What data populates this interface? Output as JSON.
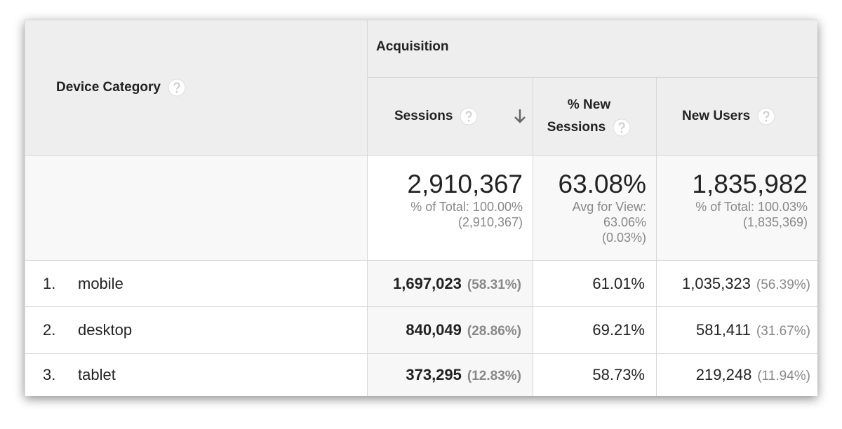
{
  "header": {
    "device_category": "Device Category",
    "group": "Acquisition",
    "columns": [
      "Sessions",
      "% New Sessions",
      "New Users"
    ]
  },
  "totals": [
    {
      "value": "2,910,367",
      "note": [
        "% of Total: 100.00%",
        "(2,910,367)"
      ]
    },
    {
      "value": "63.08%",
      "note": [
        "Avg for View:",
        "63.06%",
        "(0.03%)"
      ]
    },
    {
      "value": "1,835,982",
      "note": [
        "% of Total: 100.03%",
        "(1,835,369)"
      ]
    }
  ],
  "rows": [
    {
      "rank": "1.",
      "device": "mobile",
      "sessions": "1,697,023",
      "sessions_share": "(58.31%)",
      "new_sessions": "61.01%",
      "new_users": "1,035,323",
      "new_users_share": "(56.39%)"
    },
    {
      "rank": "2.",
      "device": "desktop",
      "sessions": "840,049",
      "sessions_share": "(28.86%)",
      "new_sessions": "69.21%",
      "new_users": "581,411",
      "new_users_share": "(31.67%)"
    },
    {
      "rank": "3.",
      "device": "tablet",
      "sessions": "373,295",
      "sessions_share": "(12.83%)",
      "new_sessions": "58.73%",
      "new_users": "219,248",
      "new_users_share": "(11.94%)"
    }
  ]
}
